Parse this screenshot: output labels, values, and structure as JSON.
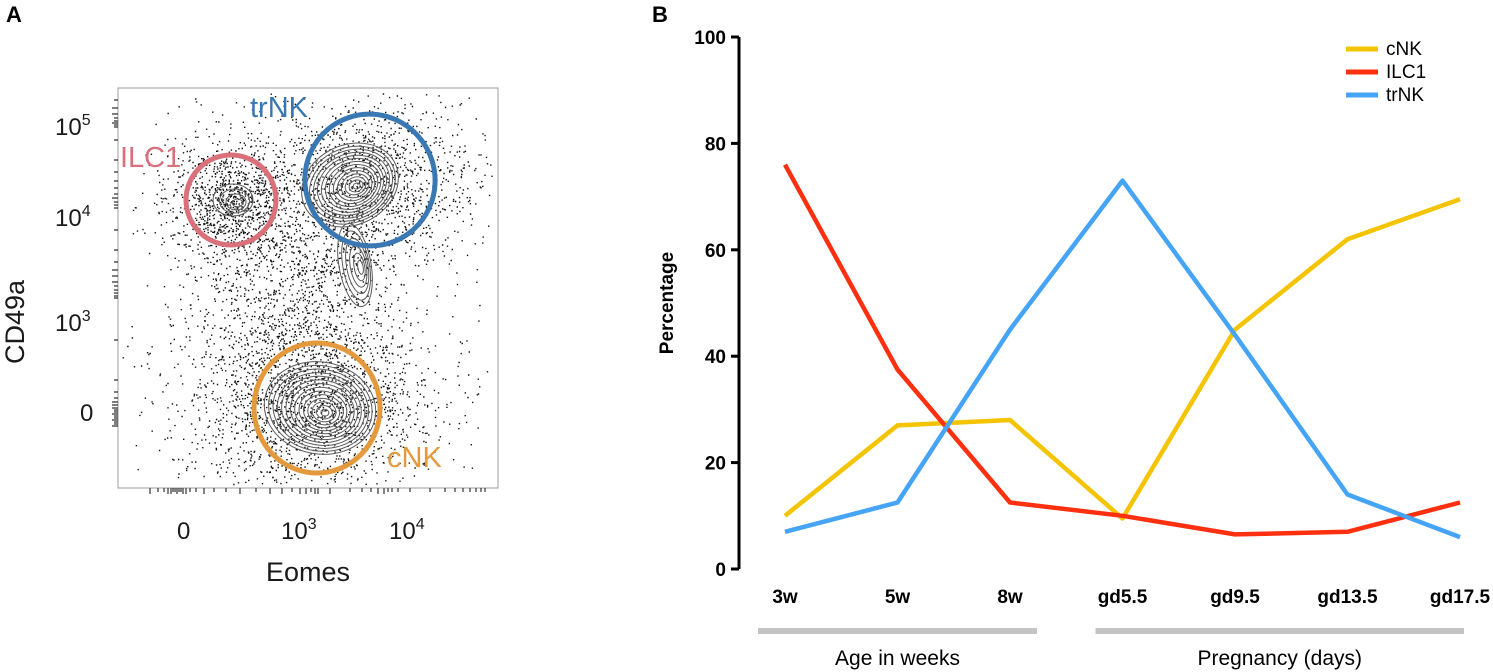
{
  "panel_a": {
    "letter": "A",
    "xlabel": "Eomes",
    "ylabel": "CD49a",
    "x_ticks": [
      {
        "base": "0",
        "exp": ""
      },
      {
        "base": "10",
        "exp": "3"
      },
      {
        "base": "10",
        "exp": "4"
      }
    ],
    "y_ticks": [
      {
        "base": "10",
        "exp": "5"
      },
      {
        "base": "10",
        "exp": "4"
      },
      {
        "base": "10",
        "exp": "3"
      },
      {
        "base": "0",
        "exp": ""
      }
    ],
    "gates": [
      {
        "key": "trnk",
        "label": "trNK",
        "color": "#3a78b4"
      },
      {
        "key": "ilc1",
        "label": "ILC1",
        "color": "#d9707a"
      },
      {
        "key": "cnk",
        "label": "cNK",
        "color": "#e49a3c"
      }
    ]
  },
  "chart_data": {
    "type": "line",
    "panel_letter": "B",
    "title": "",
    "xlabel": "",
    "ylabel": "Percentage",
    "ylim": [
      0,
      100
    ],
    "yticks": [
      0,
      20,
      40,
      60,
      80,
      100
    ],
    "categories": [
      "3w",
      "5w",
      "8w",
      "gd5.5",
      "gd9.5",
      "gd13.5",
      "gd17.5"
    ],
    "series": [
      {
        "name": "cNK",
        "color": "#f5c400",
        "values": [
          10,
          27,
          28,
          9.5,
          45,
          62,
          69.5
        ]
      },
      {
        "name": "ILC1",
        "color": "#ff3010",
        "values": [
          76,
          37.5,
          12.5,
          10,
          6.5,
          7,
          12.5
        ]
      },
      {
        "name": "trNK",
        "color": "#45a4f5",
        "values": [
          7,
          12.5,
          45,
          73,
          44,
          14,
          6
        ]
      }
    ],
    "legend_position": "top-right",
    "groups": [
      {
        "label": "Age in weeks",
        "from": 0,
        "to": 2
      },
      {
        "label": "Pregnancy (days)",
        "from": 3,
        "to": 6
      }
    ]
  }
}
